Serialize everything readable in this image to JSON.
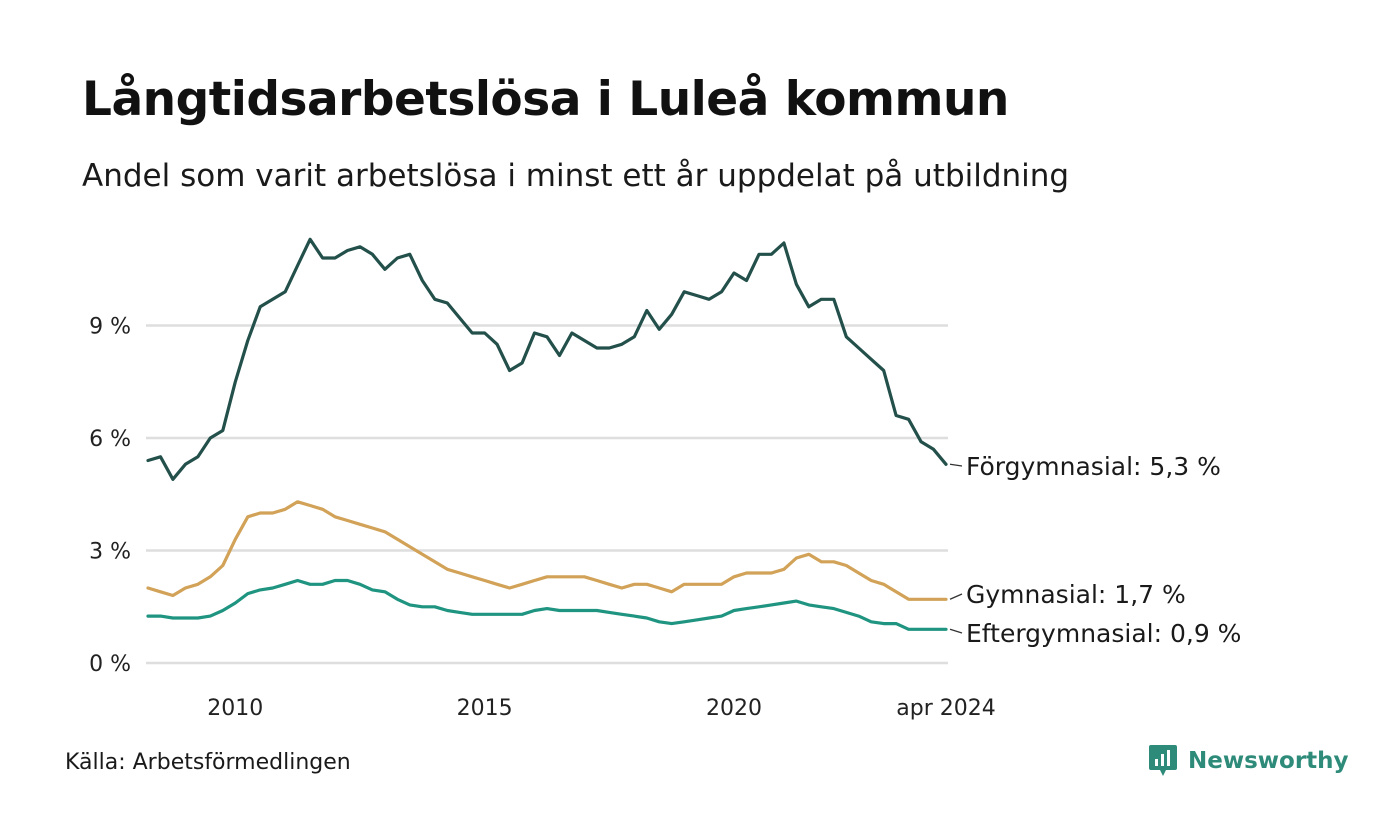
{
  "title": "Långtidsarbetslösa i Luleå kommun",
  "subtitle": "Andel som varit arbetslösa i minst ett år uppdelat på utbildning",
  "source": "Källa: Arbetsförmedlingen",
  "brand": "Newsworthy",
  "colors": {
    "grid": "#dedede",
    "brand": "#2e8b7a"
  },
  "chart_data": {
    "type": "line",
    "title": "Långtidsarbetslösa i Luleå kommun",
    "ylim": [
      0,
      11.5
    ],
    "yticks": [
      {
        "value": 0,
        "label": "0 %"
      },
      {
        "value": 3,
        "label": "3 %"
      },
      {
        "value": 6,
        "label": "6 %"
      },
      {
        "value": 9,
        "label": "9 %"
      }
    ],
    "xlim": [
      2008.25,
      2024.25
    ],
    "xticks": [
      {
        "value": 2010,
        "label": "2010"
      },
      {
        "value": 2015,
        "label": "2015"
      },
      {
        "value": 2020,
        "label": "2020"
      },
      {
        "value": 2024.25,
        "label": "apr 2024"
      }
    ],
    "grid": true,
    "series": [
      {
        "name": "Förgymnasial",
        "label": "Förgymnasial: 5,3 %",
        "color": "#23504a",
        "x": [
          2008.25,
          2008.5,
          2008.75,
          2009,
          2009.25,
          2009.5,
          2009.75,
          2010,
          2010.25,
          2010.5,
          2010.75,
          2011,
          2011.25,
          2011.5,
          2011.75,
          2012,
          2012.25,
          2012.5,
          2012.75,
          2013,
          2013.25,
          2013.5,
          2013.75,
          2014,
          2014.25,
          2014.5,
          2014.75,
          2015,
          2015.25,
          2015.5,
          2015.75,
          2016,
          2016.25,
          2016.5,
          2016.75,
          2017,
          2017.25,
          2017.5,
          2017.75,
          2018,
          2018.25,
          2018.5,
          2018.75,
          2019,
          2019.25,
          2019.5,
          2019.75,
          2020,
          2020.25,
          2020.5,
          2020.75,
          2021,
          2021.25,
          2021.5,
          2021.75,
          2022,
          2022.25,
          2022.5,
          2022.75,
          2023,
          2023.25,
          2023.5,
          2023.75,
          2024,
          2024.25
        ],
        "values": [
          5.4,
          5.5,
          4.9,
          5.3,
          5.5,
          6.0,
          6.2,
          7.5,
          8.6,
          9.5,
          9.7,
          9.9,
          10.6,
          11.3,
          10.8,
          10.8,
          11.0,
          11.1,
          10.9,
          10.5,
          10.8,
          10.9,
          10.2,
          9.7,
          9.6,
          9.2,
          8.8,
          8.8,
          8.5,
          7.8,
          8.0,
          8.8,
          8.7,
          8.2,
          8.8,
          8.6,
          8.4,
          8.4,
          8.5,
          8.7,
          9.4,
          8.9,
          9.3,
          9.9,
          9.8,
          9.7,
          9.9,
          10.4,
          10.2,
          10.9,
          10.9,
          11.2,
          10.1,
          9.5,
          9.7,
          9.7,
          8.7,
          8.4,
          8.1,
          7.8,
          6.6,
          6.5,
          5.9,
          5.7,
          5.3
        ]
      },
      {
        "name": "Gymnasial",
        "label": "Gymnasial: 1,7 %",
        "color": "#d1a257",
        "x": [
          2008.25,
          2008.5,
          2008.75,
          2009,
          2009.25,
          2009.5,
          2009.75,
          2010,
          2010.25,
          2010.5,
          2010.75,
          2011,
          2011.25,
          2011.5,
          2011.75,
          2012,
          2012.25,
          2012.5,
          2012.75,
          2013,
          2013.25,
          2013.5,
          2013.75,
          2014,
          2014.25,
          2014.5,
          2014.75,
          2015,
          2015.25,
          2015.5,
          2015.75,
          2016,
          2016.25,
          2016.5,
          2016.75,
          2017,
          2017.25,
          2017.5,
          2017.75,
          2018,
          2018.25,
          2018.5,
          2018.75,
          2019,
          2019.25,
          2019.5,
          2019.75,
          2020,
          2020.25,
          2020.5,
          2020.75,
          2021,
          2021.25,
          2021.5,
          2021.75,
          2022,
          2022.25,
          2022.5,
          2022.75,
          2023,
          2023.25,
          2023.5,
          2023.75,
          2024,
          2024.25
        ],
        "values": [
          2.0,
          1.9,
          1.8,
          2.0,
          2.1,
          2.3,
          2.6,
          3.3,
          3.9,
          4.0,
          4.0,
          4.1,
          4.3,
          4.2,
          4.1,
          3.9,
          3.8,
          3.7,
          3.6,
          3.5,
          3.3,
          3.1,
          2.9,
          2.7,
          2.5,
          2.4,
          2.3,
          2.2,
          2.1,
          2.0,
          2.1,
          2.2,
          2.3,
          2.3,
          2.3,
          2.3,
          2.2,
          2.1,
          2.0,
          2.1,
          2.1,
          2.0,
          1.9,
          2.1,
          2.1,
          2.1,
          2.1,
          2.3,
          2.4,
          2.4,
          2.4,
          2.5,
          2.8,
          2.9,
          2.7,
          2.7,
          2.6,
          2.4,
          2.2,
          2.1,
          1.9,
          1.7,
          1.7,
          1.7,
          1.7
        ]
      },
      {
        "name": "Eftergymnasial",
        "label": "Eftergymnasial: 0,9 %",
        "color": "#1f9480",
        "x": [
          2008.25,
          2008.5,
          2008.75,
          2009,
          2009.25,
          2009.5,
          2009.75,
          2010,
          2010.25,
          2010.5,
          2010.75,
          2011,
          2011.25,
          2011.5,
          2011.75,
          2012,
          2012.25,
          2012.5,
          2012.75,
          2013,
          2013.25,
          2013.5,
          2013.75,
          2014,
          2014.25,
          2014.5,
          2014.75,
          2015,
          2015.25,
          2015.5,
          2015.75,
          2016,
          2016.25,
          2016.5,
          2016.75,
          2017,
          2017.25,
          2017.5,
          2017.75,
          2018,
          2018.25,
          2018.5,
          2018.75,
          2019,
          2019.25,
          2019.5,
          2019.75,
          2020,
          2020.25,
          2020.5,
          2020.75,
          2021,
          2021.25,
          2021.5,
          2021.75,
          2022,
          2022.25,
          2022.5,
          2022.75,
          2023,
          2023.25,
          2023.5,
          2023.75,
          2024,
          2024.25
        ],
        "values": [
          1.25,
          1.25,
          1.2,
          1.2,
          1.2,
          1.25,
          1.4,
          1.6,
          1.85,
          1.95,
          2.0,
          2.1,
          2.2,
          2.1,
          2.1,
          2.2,
          2.2,
          2.1,
          1.95,
          1.9,
          1.7,
          1.55,
          1.5,
          1.5,
          1.4,
          1.35,
          1.3,
          1.3,
          1.3,
          1.3,
          1.3,
          1.4,
          1.45,
          1.4,
          1.4,
          1.4,
          1.4,
          1.35,
          1.3,
          1.25,
          1.2,
          1.1,
          1.05,
          1.1,
          1.15,
          1.2,
          1.25,
          1.4,
          1.45,
          1.5,
          1.55,
          1.6,
          1.65,
          1.55,
          1.5,
          1.45,
          1.35,
          1.25,
          1.1,
          1.05,
          1.05,
          0.9,
          0.9,
          0.9,
          0.9
        ]
      }
    ]
  }
}
